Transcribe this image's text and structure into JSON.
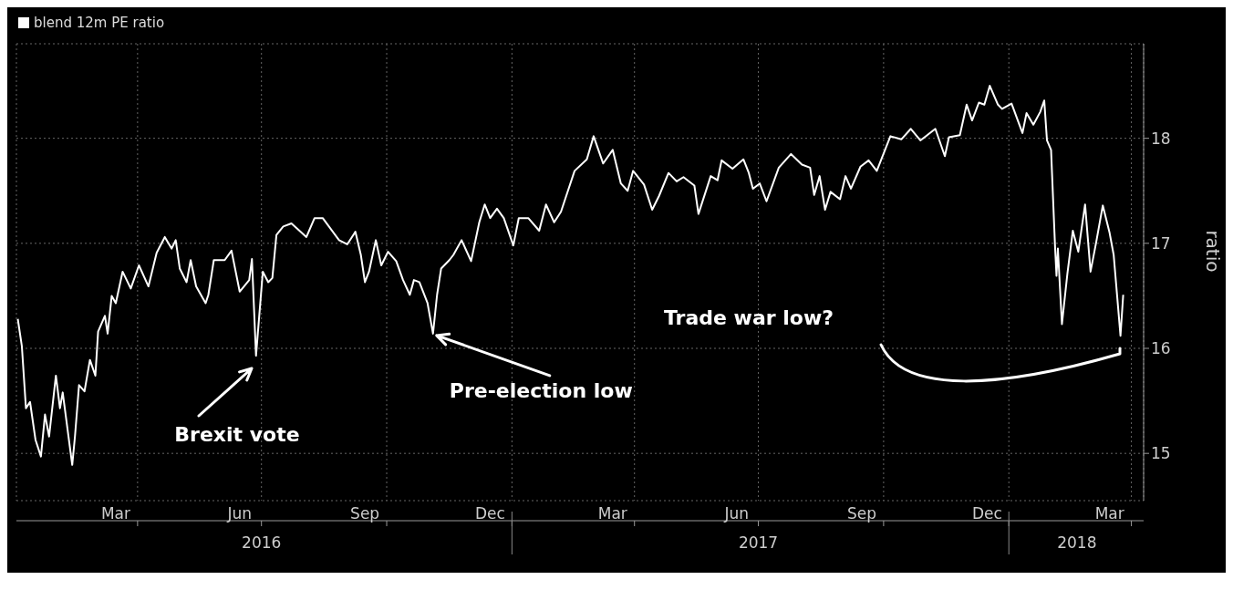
{
  "chart_data": {
    "type": "line",
    "ylabel": "ratio",
    "legend": "top left",
    "grid": true,
    "x": [
      "2016-01-04",
      "2016-01-07",
      "2016-01-10",
      "2016-01-13",
      "2016-01-17",
      "2016-01-21",
      "2016-01-24",
      "2016-01-27",
      "2016-02-01",
      "2016-02-04",
      "2016-02-06",
      "2016-02-13",
      "2016-02-15",
      "2016-02-18",
      "2016-02-22",
      "2016-02-26",
      "2016-03-01",
      "2016-03-03",
      "2016-03-08",
      "2016-03-10",
      "2016-03-13",
      "2016-03-16",
      "2016-03-21",
      "2016-03-27",
      "2016-04-02",
      "2016-04-09",
      "2016-04-15",
      "2016-04-21",
      "2016-04-26",
      "2016-04-29",
      "2016-05-02",
      "2016-05-07",
      "2016-05-10",
      "2016-05-14",
      "2016-05-21",
      "2016-05-23",
      "2016-05-27",
      "2016-06-04",
      "2016-06-09",
      "2016-06-15",
      "2016-06-22",
      "2016-06-24",
      "2016-06-27",
      "2016-07-02",
      "2016-07-06",
      "2016-07-09",
      "2016-07-12",
      "2016-07-17",
      "2016-07-23",
      "2016-08-03",
      "2016-08-09",
      "2016-08-15",
      "2016-08-27",
      "2016-09-02",
      "2016-09-08",
      "2016-09-12",
      "2016-09-15",
      "2016-09-18",
      "2016-09-23",
      "2016-09-27",
      "2016-10-02",
      "2016-10-08",
      "2016-10-13",
      "2016-10-18",
      "2016-10-21",
      "2016-10-25",
      "2016-10-31",
      "2016-11-04",
      "2016-11-07",
      "2016-11-10",
      "2016-11-16",
      "2016-11-19",
      "2016-11-25",
      "2016-12-02",
      "2016-12-08",
      "2016-12-12",
      "2016-12-16",
      "2016-12-21",
      "2016-12-26",
      "2017-01-02",
      "2017-01-06",
      "2017-01-13",
      "2017-01-21",
      "2017-01-26",
      "2017-02-01",
      "2017-02-06",
      "2017-02-16",
      "2017-02-25",
      "2017-03-02",
      "2017-03-09",
      "2017-03-16",
      "2017-03-22",
      "2017-03-27",
      "2017-03-31",
      "2017-04-08",
      "2017-04-14",
      "2017-04-19",
      "2017-04-26",
      "2017-05-02",
      "2017-05-07",
      "2017-05-15",
      "2017-05-18",
      "2017-05-27",
      "2017-06-01",
      "2017-06-04",
      "2017-06-12",
      "2017-06-20",
      "2017-06-24",
      "2017-06-27",
      "2017-07-02",
      "2017-07-07",
      "2017-07-16",
      "2017-07-25",
      "2017-08-02",
      "2017-08-08",
      "2017-08-11",
      "2017-08-15",
      "2017-08-19",
      "2017-08-23",
      "2017-08-30",
      "2017-09-03",
      "2017-09-07",
      "2017-09-14",
      "2017-09-20",
      "2017-09-26",
      "2017-10-06",
      "2017-10-14",
      "2017-10-21",
      "2017-10-28",
      "2017-11-08",
      "2017-11-15",
      "2017-11-18",
      "2017-11-26",
      "2017-12-01",
      "2017-12-05",
      "2017-12-10",
      "2017-12-14",
      "2017-12-18",
      "2017-12-24",
      "2017-12-27",
      "2018-01-03",
      "2018-01-11",
      "2018-01-14",
      "2018-01-19",
      "2018-01-24",
      "2018-01-27",
      "2018-01-29",
      "2018-02-01",
      "2018-02-04",
      "2018-02-05",
      "2018-02-06",
      "2018-02-09",
      "2018-02-13",
      "2018-02-17",
      "2018-02-21",
      "2018-02-26",
      "2018-03-02",
      "2018-03-06",
      "2018-03-11",
      "2018-03-16",
      "2018-03-19",
      "2018-03-24",
      "2018-03-26"
    ],
    "series": [
      {
        "name": "blend 12m PE ratio",
        "color": "#ffffff",
        "values": [
          16.28,
          16.02,
          15.43,
          15.49,
          15.13,
          14.97,
          15.37,
          15.16,
          15.74,
          15.43,
          15.58,
          14.89,
          15.16,
          15.65,
          15.59,
          15.89,
          15.74,
          16.16,
          16.31,
          16.14,
          16.5,
          16.43,
          16.73,
          16.57,
          16.79,
          16.59,
          16.91,
          17.06,
          16.95,
          17.03,
          16.76,
          16.63,
          16.84,
          16.59,
          16.43,
          16.51,
          16.84,
          16.84,
          16.93,
          16.54,
          16.65,
          16.85,
          15.93,
          16.73,
          16.63,
          16.67,
          17.08,
          17.16,
          17.19,
          17.06,
          17.24,
          17.24,
          17.03,
          16.99,
          17.11,
          16.89,
          16.63,
          16.73,
          17.03,
          16.79,
          16.92,
          16.83,
          16.65,
          16.51,
          16.65,
          16.63,
          16.43,
          16.14,
          16.51,
          16.76,
          16.84,
          16.89,
          17.03,
          16.83,
          17.2,
          17.37,
          17.24,
          17.33,
          17.24,
          16.98,
          17.24,
          17.24,
          17.12,
          17.37,
          17.2,
          17.3,
          17.69,
          17.8,
          18.02,
          17.76,
          17.89,
          17.57,
          17.5,
          17.69,
          17.56,
          17.32,
          17.45,
          17.67,
          17.59,
          17.63,
          17.55,
          17.28,
          17.64,
          17.6,
          17.79,
          17.71,
          17.8,
          17.67,
          17.52,
          17.57,
          17.4,
          17.72,
          17.85,
          17.75,
          17.72,
          17.46,
          17.64,
          17.32,
          17.49,
          17.42,
          17.64,
          17.52,
          17.73,
          17.79,
          17.69,
          18.02,
          17.99,
          18.09,
          17.98,
          18.09,
          17.83,
          18.01,
          18.03,
          18.32,
          18.17,
          18.34,
          18.32,
          18.5,
          18.32,
          18.28,
          18.33,
          18.05,
          18.24,
          18.13,
          18.25,
          18.36,
          17.98,
          17.89,
          16.95,
          16.69,
          16.95,
          16.23,
          16.71,
          17.12,
          16.92,
          17.37,
          16.73,
          17.0,
          17.36,
          17.1,
          16.89,
          16.12,
          16.51
        ]
      }
    ],
    "xlim": [
      "2016-01-03",
      "2018-04-10"
    ],
    "xticks": [
      {
        "value": "2016-03-16",
        "label": "Mar"
      },
      {
        "value": "2016-06-15",
        "label": "Jun"
      },
      {
        "value": "2016-09-15",
        "label": "Sep"
      },
      {
        "value": "2016-12-16",
        "label": "Dec"
      },
      {
        "value": "2017-03-16",
        "label": "Mar"
      },
      {
        "value": "2017-06-15",
        "label": "Jun"
      },
      {
        "value": "2017-09-15",
        "label": "Sep"
      },
      {
        "value": "2017-12-16",
        "label": "Dec"
      },
      {
        "value": "2018-03-16",
        "label": "Mar"
      },
      {
        "value": "2016-04-01",
        "label": null
      },
      {
        "value": "2016-07-01",
        "label": null
      },
      {
        "value": "2016-10-01",
        "label": null
      },
      {
        "value": "2017-01-01",
        "label": null
      },
      {
        "value": "2017-04-01",
        "label": null
      },
      {
        "value": "2017-07-01",
        "label": null
      },
      {
        "value": "2017-10-01",
        "label": null
      },
      {
        "value": "2018-01-01",
        "label": null
      },
      {
        "value": "2018-04-01",
        "label": null
      }
    ],
    "x2lim": [
      "2016-01-03",
      "2018-04-10"
    ],
    "x2ticks": [
      {
        "value": "2016-07-01",
        "label": "2016"
      },
      {
        "value": "2017-01-01",
        "label": null
      },
      {
        "value": "2017-07-01",
        "label": "2017"
      },
      {
        "value": "2018-01-01",
        "label": null
      },
      {
        "value": "2018-02-20",
        "label": "2018"
      }
    ],
    "ylim": [
      14.55,
      18.9
    ],
    "yticks": [
      15,
      16,
      17,
      18
    ],
    "annotations": [
      "Brexit vote",
      {
        "text": "Pre-election low",
        "x": "2016-11-04",
        "y": 16.14
      },
      "Trade war low?"
    ]
  }
}
